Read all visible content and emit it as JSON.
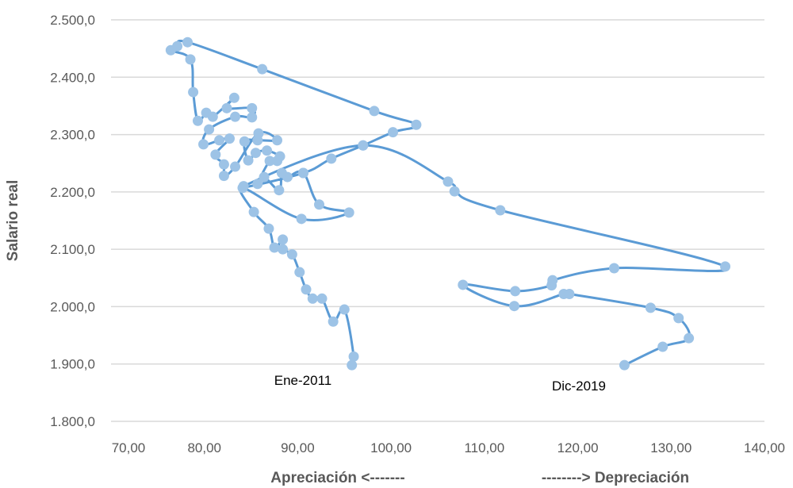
{
  "chart_data": {
    "type": "scatter",
    "title": "",
    "xlabel": "Apreciación   <-------                  -------->   Depreciación",
    "xlabel_left": "Apreciación   <-------",
    "xlabel_right": "-------->   Depreciación",
    "ylabel": "Salario real",
    "xlim": [
      70,
      140
    ],
    "ylim": [
      1800,
      2500
    ],
    "grid": "horizontal",
    "xticks": [
      "70,00",
      "80,00",
      "90,00",
      "100,00",
      "110,00",
      "120,00",
      "130,00",
      "140,00"
    ],
    "yticks": [
      "1.800,0",
      "1.900,0",
      "2.000,0",
      "2.100,0",
      "2.200,0",
      "2.300,0",
      "2.400,0",
      "2.500,0"
    ],
    "annotations": [
      {
        "text": "Ene-2011",
        "x": 95.8,
        "y": 1898
      },
      {
        "text": "Dic-2019",
        "x": 125.0,
        "y": 1898
      }
    ],
    "series": [
      {
        "name": "Salario real vs tipo de cambio",
        "color": "#5b9bd5",
        "marker_color": "#9dc3e6",
        "points": [
          [
            95.8,
            1898
          ],
          [
            96.0,
            1913
          ],
          [
            95.0,
            1995
          ],
          [
            93.8,
            1974
          ],
          [
            92.6,
            2014
          ],
          [
            91.6,
            2014
          ],
          [
            90.9,
            2030
          ],
          [
            90.2,
            2060
          ],
          [
            89.4,
            2091
          ],
          [
            88.4,
            2100
          ],
          [
            88.4,
            2117
          ],
          [
            87.5,
            2103
          ],
          [
            86.9,
            2136
          ],
          [
            85.3,
            2165
          ],
          [
            84.1,
            2207
          ],
          [
            90.4,
            2153
          ],
          [
            95.5,
            2164
          ],
          [
            92.3,
            2178
          ],
          [
            90.6,
            2233
          ],
          [
            88.9,
            2226
          ],
          [
            88.3,
            2233
          ],
          [
            88.0,
            2203
          ],
          [
            86.4,
            2226
          ],
          [
            85.7,
            2214
          ],
          [
            87.0,
            2254
          ],
          [
            87.8,
            2254
          ],
          [
            88.1,
            2262
          ],
          [
            86.7,
            2272
          ],
          [
            85.5,
            2268
          ],
          [
            84.7,
            2255
          ],
          [
            84.3,
            2288
          ],
          [
            85.7,
            2290
          ],
          [
            87.8,
            2290
          ],
          [
            85.8,
            2302
          ],
          [
            83.3,
            2244
          ],
          [
            82.1,
            2228
          ],
          [
            82.1,
            2248
          ],
          [
            81.2,
            2265
          ],
          [
            82.7,
            2293
          ],
          [
            81.6,
            2290
          ],
          [
            79.9,
            2283
          ],
          [
            80.5,
            2309
          ],
          [
            83.3,
            2331
          ],
          [
            85.1,
            2330
          ],
          [
            85.1,
            2346
          ],
          [
            82.4,
            2346
          ],
          [
            83.2,
            2364
          ],
          [
            80.9,
            2331
          ],
          [
            80.2,
            2338
          ],
          [
            79.3,
            2324
          ],
          [
            78.8,
            2374
          ],
          [
            78.5,
            2431
          ],
          [
            76.4,
            2447
          ],
          [
            77.1,
            2454
          ],
          [
            78.2,
            2461
          ],
          [
            86.2,
            2414
          ],
          [
            98.2,
            2341
          ],
          [
            102.7,
            2317
          ],
          [
            100.2,
            2304
          ],
          [
            97.0,
            2281
          ],
          [
            93.6,
            2258
          ],
          [
            90.6,
            2233
          ],
          [
            84.2,
            2210
          ],
          [
            97.0,
            2281
          ],
          [
            106.1,
            2218
          ],
          [
            106.8,
            2201
          ],
          [
            111.7,
            2168
          ],
          [
            135.8,
            2070
          ],
          [
            123.9,
            2067
          ],
          [
            117.3,
            2046
          ],
          [
            117.2,
            2037
          ],
          [
            113.3,
            2027
          ],
          [
            107.7,
            2038
          ],
          [
            113.2,
            2001
          ],
          [
            118.5,
            2022
          ],
          [
            119.1,
            2022
          ],
          [
            127.8,
            1998
          ],
          [
            130.8,
            1980
          ],
          [
            131.9,
            1945
          ],
          [
            129.1,
            1930
          ],
          [
            125.0,
            1898
          ]
        ]
      }
    ]
  }
}
